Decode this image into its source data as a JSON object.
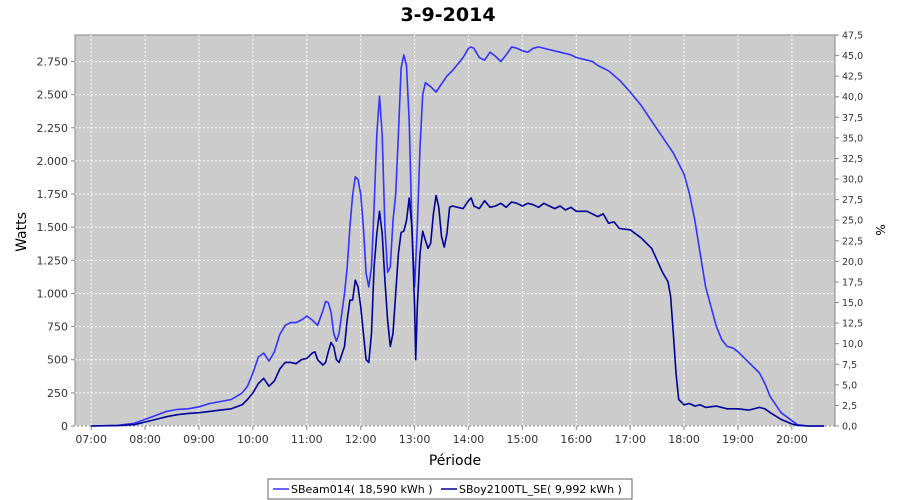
{
  "chart_data": {
    "type": "line",
    "title": "3-9-2014",
    "xlabel": "Période",
    "ylabel": "Watts",
    "ylabel_right": "%",
    "xlim": [
      6.7,
      20.8
    ],
    "ylim": [
      0,
      2950
    ],
    "ylim_right": [
      0,
      47.5
    ],
    "x_ticks": [
      {
        "v": 7,
        "label": "07:00"
      },
      {
        "v": 8,
        "label": "08:00"
      },
      {
        "v": 9,
        "label": "09:00"
      },
      {
        "v": 10,
        "label": "10:00"
      },
      {
        "v": 11,
        "label": "11:00"
      },
      {
        "v": 12,
        "label": "12:00"
      },
      {
        "v": 13,
        "label": "13:00"
      },
      {
        "v": 14,
        "label": "14:00"
      },
      {
        "v": 15,
        "label": "15:00"
      },
      {
        "v": 16,
        "label": "16:00"
      },
      {
        "v": 17,
        "label": "17:00"
      },
      {
        "v": 18,
        "label": "18:00"
      },
      {
        "v": 19,
        "label": "19:00"
      },
      {
        "v": 20,
        "label": "20:00"
      }
    ],
    "y_ticks": [
      {
        "v": 0,
        "label": "0"
      },
      {
        "v": 250,
        "label": "250"
      },
      {
        "v": 500,
        "label": "500"
      },
      {
        "v": 750,
        "label": "750"
      },
      {
        "v": 1000,
        "label": "1.000"
      },
      {
        "v": 1250,
        "label": "1.250"
      },
      {
        "v": 1500,
        "label": "1.500"
      },
      {
        "v": 1750,
        "label": "1.750"
      },
      {
        "v": 2000,
        "label": "2.000"
      },
      {
        "v": 2250,
        "label": "2.250"
      },
      {
        "v": 2500,
        "label": "2.500"
      },
      {
        "v": 2750,
        "label": "2.750"
      }
    ],
    "y_ticks_right": [
      {
        "v": 0,
        "label": "0,0"
      },
      {
        "v": 2.5,
        "label": "2,5"
      },
      {
        "v": 5,
        "label": "5,0"
      },
      {
        "v": 7.5,
        "label": "7,5"
      },
      {
        "v": 10,
        "label": "10,0"
      },
      {
        "v": 12.5,
        "label": "12,5"
      },
      {
        "v": 15,
        "label": "15,0"
      },
      {
        "v": 17.5,
        "label": "17,5"
      },
      {
        "v": 20,
        "label": "20,0"
      },
      {
        "v": 22.5,
        "label": "22,5"
      },
      {
        "v": 25,
        "label": "25,0"
      },
      {
        "v": 27.5,
        "label": "27,5"
      },
      {
        "v": 30,
        "label": "30,0"
      },
      {
        "v": 32.5,
        "label": "32,5"
      },
      {
        "v": 35,
        "label": "35,0"
      },
      {
        "v": 37.5,
        "label": "37,5"
      },
      {
        "v": 40,
        "label": "40,0"
      },
      {
        "v": 42.5,
        "label": "42,5"
      },
      {
        "v": 45,
        "label": "45,0"
      },
      {
        "v": 47.5,
        "label": "47,5"
      }
    ],
    "grid": true,
    "legend_position": "bottom",
    "series": [
      {
        "name": "SBeam014( 18,590 kWh )",
        "color": "#3333ff",
        "points": [
          [
            7.0,
            0
          ],
          [
            7.5,
            5
          ],
          [
            7.8,
            20
          ],
          [
            8.0,
            50
          ],
          [
            8.2,
            80
          ],
          [
            8.4,
            110
          ],
          [
            8.6,
            125
          ],
          [
            8.8,
            130
          ],
          [
            9.0,
            145
          ],
          [
            9.2,
            170
          ],
          [
            9.4,
            185
          ],
          [
            9.6,
            200
          ],
          [
            9.8,
            250
          ],
          [
            9.9,
            300
          ],
          [
            10.0,
            400
          ],
          [
            10.1,
            520
          ],
          [
            10.2,
            550
          ],
          [
            10.3,
            490
          ],
          [
            10.4,
            560
          ],
          [
            10.5,
            690
          ],
          [
            10.6,
            760
          ],
          [
            10.7,
            780
          ],
          [
            10.8,
            780
          ],
          [
            10.9,
            800
          ],
          [
            11.0,
            830
          ],
          [
            11.1,
            800
          ],
          [
            11.2,
            760
          ],
          [
            11.3,
            870
          ],
          [
            11.35,
            940
          ],
          [
            11.4,
            930
          ],
          [
            11.45,
            860
          ],
          [
            11.5,
            700
          ],
          [
            11.55,
            640
          ],
          [
            11.6,
            700
          ],
          [
            11.7,
            1000
          ],
          [
            11.75,
            1200
          ],
          [
            11.8,
            1500
          ],
          [
            11.85,
            1740
          ],
          [
            11.9,
            1880
          ],
          [
            11.95,
            1860
          ],
          [
            12.0,
            1750
          ],
          [
            12.05,
            1500
          ],
          [
            12.1,
            1150
          ],
          [
            12.15,
            1050
          ],
          [
            12.2,
            1200
          ],
          [
            12.25,
            1650
          ],
          [
            12.3,
            2200
          ],
          [
            12.35,
            2490
          ],
          [
            12.4,
            2200
          ],
          [
            12.45,
            1500
          ],
          [
            12.5,
            1160
          ],
          [
            12.55,
            1200
          ],
          [
            12.6,
            1550
          ],
          [
            12.65,
            1750
          ],
          [
            12.7,
            2200
          ],
          [
            12.75,
            2700
          ],
          [
            12.8,
            2800
          ],
          [
            12.85,
            2720
          ],
          [
            12.9,
            2300
          ],
          [
            12.95,
            1500
          ],
          [
            13.0,
            1050
          ],
          [
            13.05,
            1500
          ],
          [
            13.1,
            2100
          ],
          [
            13.15,
            2500
          ],
          [
            13.2,
            2590
          ],
          [
            13.3,
            2560
          ],
          [
            13.4,
            2520
          ],
          [
            13.5,
            2580
          ],
          [
            13.6,
            2640
          ],
          [
            13.7,
            2680
          ],
          [
            13.8,
            2730
          ],
          [
            13.9,
            2780
          ],
          [
            14.0,
            2850
          ],
          [
            14.05,
            2860
          ],
          [
            14.1,
            2850
          ],
          [
            14.2,
            2780
          ],
          [
            14.3,
            2760
          ],
          [
            14.4,
            2820
          ],
          [
            14.5,
            2790
          ],
          [
            14.6,
            2750
          ],
          [
            14.7,
            2800
          ],
          [
            14.8,
            2860
          ],
          [
            14.9,
            2850
          ],
          [
            15.0,
            2830
          ],
          [
            15.1,
            2820
          ],
          [
            15.2,
            2850
          ],
          [
            15.3,
            2860
          ],
          [
            15.5,
            2840
          ],
          [
            15.7,
            2820
          ],
          [
            15.9,
            2800
          ],
          [
            16.0,
            2780
          ],
          [
            16.1,
            2770
          ],
          [
            16.2,
            2760
          ],
          [
            16.3,
            2750
          ],
          [
            16.4,
            2720
          ],
          [
            16.6,
            2680
          ],
          [
            16.8,
            2610
          ],
          [
            17.0,
            2520
          ],
          [
            17.2,
            2420
          ],
          [
            17.4,
            2300
          ],
          [
            17.6,
            2180
          ],
          [
            17.8,
            2060
          ],
          [
            17.9,
            1980
          ],
          [
            18.0,
            1900
          ],
          [
            18.1,
            1750
          ],
          [
            18.2,
            1550
          ],
          [
            18.3,
            1300
          ],
          [
            18.4,
            1050
          ],
          [
            18.5,
            900
          ],
          [
            18.6,
            750
          ],
          [
            18.7,
            650
          ],
          [
            18.8,
            600
          ],
          [
            18.9,
            590
          ],
          [
            19.0,
            560
          ],
          [
            19.2,
            480
          ],
          [
            19.4,
            400
          ],
          [
            19.5,
            320
          ],
          [
            19.6,
            220
          ],
          [
            19.8,
            100
          ],
          [
            20.0,
            40
          ],
          [
            20.1,
            10
          ],
          [
            20.3,
            0
          ],
          [
            20.6,
            0
          ]
        ]
      },
      {
        "name": "SBoy2100TL_SE( 9,992 kWh )",
        "color": "#000099",
        "points": [
          [
            7.0,
            0
          ],
          [
            7.5,
            3
          ],
          [
            7.8,
            10
          ],
          [
            8.0,
            30
          ],
          [
            8.2,
            50
          ],
          [
            8.4,
            70
          ],
          [
            8.6,
            85
          ],
          [
            8.8,
            95
          ],
          [
            9.0,
            100
          ],
          [
            9.2,
            110
          ],
          [
            9.4,
            120
          ],
          [
            9.6,
            130
          ],
          [
            9.8,
            160
          ],
          [
            9.9,
            200
          ],
          [
            10.0,
            250
          ],
          [
            10.1,
            320
          ],
          [
            10.2,
            360
          ],
          [
            10.3,
            300
          ],
          [
            10.4,
            340
          ],
          [
            10.5,
            430
          ],
          [
            10.6,
            480
          ],
          [
            10.7,
            480
          ],
          [
            10.8,
            470
          ],
          [
            10.9,
            500
          ],
          [
            11.0,
            510
          ],
          [
            11.1,
            550
          ],
          [
            11.15,
            560
          ],
          [
            11.2,
            500
          ],
          [
            11.3,
            460
          ],
          [
            11.35,
            480
          ],
          [
            11.4,
            560
          ],
          [
            11.45,
            630
          ],
          [
            11.5,
            600
          ],
          [
            11.55,
            500
          ],
          [
            11.6,
            480
          ],
          [
            11.7,
            600
          ],
          [
            11.75,
            800
          ],
          [
            11.8,
            950
          ],
          [
            11.85,
            950
          ],
          [
            11.9,
            1100
          ],
          [
            11.95,
            1050
          ],
          [
            12.0,
            900
          ],
          [
            12.05,
            700
          ],
          [
            12.1,
            500
          ],
          [
            12.15,
            480
          ],
          [
            12.2,
            700
          ],
          [
            12.25,
            1200
          ],
          [
            12.3,
            1450
          ],
          [
            12.35,
            1620
          ],
          [
            12.4,
            1450
          ],
          [
            12.45,
            1100
          ],
          [
            12.5,
            800
          ],
          [
            12.55,
            600
          ],
          [
            12.6,
            700
          ],
          [
            12.65,
            1000
          ],
          [
            12.7,
            1300
          ],
          [
            12.75,
            1460
          ],
          [
            12.8,
            1470
          ],
          [
            12.85,
            1550
          ],
          [
            12.9,
            1720
          ],
          [
            12.95,
            1500
          ],
          [
            13.0,
            900
          ],
          [
            13.02,
            500
          ],
          [
            13.05,
            900
          ],
          [
            13.1,
            1300
          ],
          [
            13.15,
            1470
          ],
          [
            13.2,
            1400
          ],
          [
            13.25,
            1340
          ],
          [
            13.3,
            1380
          ],
          [
            13.35,
            1600
          ],
          [
            13.4,
            1740
          ],
          [
            13.45,
            1650
          ],
          [
            13.5,
            1430
          ],
          [
            13.55,
            1350
          ],
          [
            13.6,
            1450
          ],
          [
            13.65,
            1650
          ],
          [
            13.7,
            1660
          ],
          [
            13.8,
            1650
          ],
          [
            13.9,
            1640
          ],
          [
            14.0,
            1700
          ],
          [
            14.05,
            1720
          ],
          [
            14.1,
            1660
          ],
          [
            14.2,
            1640
          ],
          [
            14.3,
            1700
          ],
          [
            14.4,
            1650
          ],
          [
            14.5,
            1660
          ],
          [
            14.6,
            1680
          ],
          [
            14.7,
            1650
          ],
          [
            14.8,
            1690
          ],
          [
            14.9,
            1680
          ],
          [
            15.0,
            1660
          ],
          [
            15.1,
            1680
          ],
          [
            15.2,
            1670
          ],
          [
            15.3,
            1650
          ],
          [
            15.4,
            1680
          ],
          [
            15.5,
            1660
          ],
          [
            15.6,
            1640
          ],
          [
            15.7,
            1660
          ],
          [
            15.8,
            1630
          ],
          [
            15.9,
            1650
          ],
          [
            16.0,
            1620
          ],
          [
            16.2,
            1620
          ],
          [
            16.4,
            1580
          ],
          [
            16.5,
            1600
          ],
          [
            16.6,
            1530
          ],
          [
            16.7,
            1540
          ],
          [
            16.8,
            1490
          ],
          [
            17.0,
            1480
          ],
          [
            17.2,
            1420
          ],
          [
            17.3,
            1380
          ],
          [
            17.4,
            1340
          ],
          [
            17.5,
            1250
          ],
          [
            17.6,
            1160
          ],
          [
            17.7,
            1090
          ],
          [
            17.75,
            980
          ],
          [
            17.8,
            700
          ],
          [
            17.85,
            400
          ],
          [
            17.9,
            200
          ],
          [
            18.0,
            160
          ],
          [
            18.1,
            170
          ],
          [
            18.2,
            150
          ],
          [
            18.3,
            160
          ],
          [
            18.4,
            140
          ],
          [
            18.6,
            150
          ],
          [
            18.8,
            130
          ],
          [
            19.0,
            130
          ],
          [
            19.2,
            120
          ],
          [
            19.4,
            140
          ],
          [
            19.5,
            130
          ],
          [
            19.6,
            100
          ],
          [
            19.8,
            50
          ],
          [
            20.0,
            15
          ],
          [
            20.1,
            5
          ],
          [
            20.3,
            0
          ],
          [
            20.6,
            0
          ]
        ]
      }
    ]
  }
}
